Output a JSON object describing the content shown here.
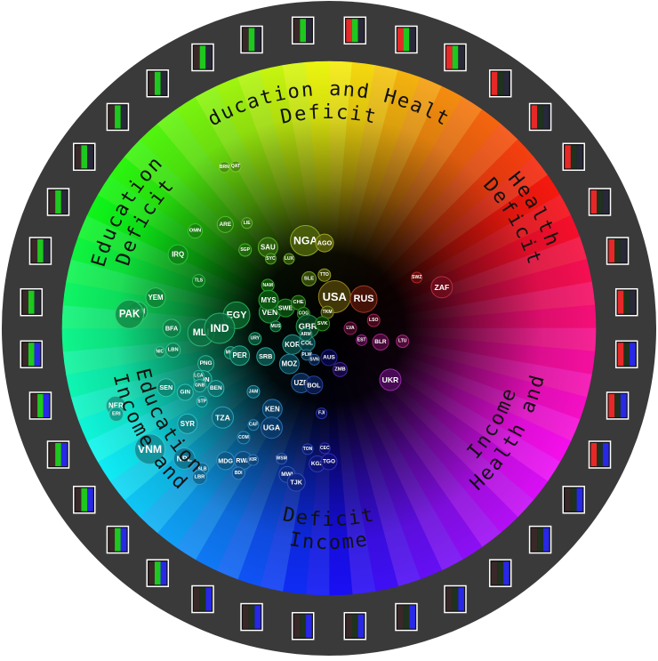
{
  "chart_data": {
    "type": "scatter",
    "description_scale": "polar color wheel; angle = deficit mix, radius = deficit magnitude (0 = center)",
    "sector_labels": [
      {
        "id": "education-and-health",
        "lines": [
          "Education and Health",
          "Deficit"
        ],
        "angle": 0
      },
      {
        "id": "health",
        "lines": [
          "Health",
          "Deficit"
        ],
        "angle": 60
      },
      {
        "id": "health-and-income",
        "lines": [
          "Health and",
          "Income"
        ],
        "angle": 120
      },
      {
        "id": "income",
        "lines": [
          "Income",
          "Deficit"
        ],
        "angle": 180
      },
      {
        "id": "income-and-education",
        "lines": [
          "Income and",
          "Education"
        ],
        "angle": 240
      },
      {
        "id": "education",
        "lines": [
          "Education",
          "Deficit"
        ],
        "angle": 300
      }
    ],
    "series": [
      {
        "label": "NGA",
        "angle": 345,
        "radius": 0.34,
        "size": 17
      },
      {
        "label": "AGO",
        "angle": 357,
        "radius": 0.32,
        "size": 10
      },
      {
        "label": "SAU",
        "angle": 323,
        "radius": 0.38,
        "size": 11
      },
      {
        "label": "LIE",
        "angle": 322,
        "radius": 0.5,
        "size": 6
      },
      {
        "label": "ARE",
        "angle": 315,
        "radius": 0.55,
        "size": 9
      },
      {
        "label": "QAT",
        "angle": 330,
        "radius": 0.7,
        "size": 6
      },
      {
        "label": "BRN",
        "angle": 327,
        "radius": 0.72,
        "size": 6
      },
      {
        "label": "OMN",
        "angle": 306,
        "radius": 0.62,
        "size": 8
      },
      {
        "label": "SGP",
        "angle": 313,
        "radius": 0.43,
        "size": 7
      },
      {
        "label": "IRQ",
        "angle": 296,
        "radius": 0.63,
        "size": 11
      },
      {
        "label": "LUX",
        "angle": 330,
        "radius": 0.3,
        "size": 6
      },
      {
        "label": "SYC",
        "angle": 320,
        "radius": 0.34,
        "size": 6
      },
      {
        "label": "TTO",
        "angle": 355,
        "radius": 0.2,
        "size": 7
      },
      {
        "label": "SLE",
        "angle": 338,
        "radius": 0.2,
        "size": 8
      },
      {
        "label": "NAM",
        "angle": 305,
        "radius": 0.28,
        "size": 7
      },
      {
        "label": "TLS",
        "angle": 290,
        "radius": 0.52,
        "size": 7
      },
      {
        "label": "YEM",
        "angle": 280,
        "radius": 0.66,
        "size": 11
      },
      {
        "label": "SDN",
        "angle": 275,
        "radius": 0.72,
        "size": 11
      },
      {
        "label": "PAK",
        "angle": 274,
        "radius": 0.75,
        "size": 16
      },
      {
        "label": "BFA",
        "angle": 270,
        "radius": 0.59,
        "size": 10
      },
      {
        "label": "MLI",
        "angle": 268,
        "radius": 0.48,
        "size": 15
      },
      {
        "label": "EGY",
        "angle": 278,
        "radius": 0.35,
        "size": 15
      },
      {
        "label": "IND",
        "angle": 270,
        "radius": 0.41,
        "size": 17
      },
      {
        "label": "LBN",
        "angle": 262,
        "radius": 0.59,
        "size": 8
      },
      {
        "label": "VEN",
        "angle": 285,
        "radius": 0.23,
        "size": 12
      },
      {
        "label": "MYS",
        "angle": 295,
        "radius": 0.25,
        "size": 11
      },
      {
        "label": "SWE",
        "angle": 295,
        "radius": 0.18,
        "size": 10
      },
      {
        "label": "CHE",
        "angle": 310,
        "radius": 0.15,
        "size": 8
      },
      {
        "label": "COG",
        "angle": 300,
        "radius": 0.11,
        "size": 7
      },
      {
        "label": "MUS",
        "angle": 272,
        "radius": 0.2,
        "size": 6
      },
      {
        "label": "URY",
        "angle": 262,
        "radius": 0.28,
        "size": 7
      },
      {
        "label": "MKD",
        "angle": 256,
        "radius": 0.38,
        "size": 7
      },
      {
        "label": "PNG",
        "angle": 254,
        "radius": 0.48,
        "size": 9
      },
      {
        "label": "NIC",
        "angle": 262,
        "radius": 0.64,
        "size": 6
      },
      {
        "label": "TUN",
        "angle": 248,
        "radius": 0.51,
        "size": 10
      },
      {
        "label": "PER",
        "angle": 253,
        "radius": 0.35,
        "size": 11
      },
      {
        "label": "SEN",
        "angle": 250,
        "radius": 0.65,
        "size": 10
      },
      {
        "label": "GIN",
        "angle": 246,
        "radius": 0.59,
        "size": 9
      },
      {
        "label": "LCA",
        "angle": 250,
        "radius": 0.52,
        "size": 6
      },
      {
        "label": "GNB",
        "angle": 246,
        "radius": 0.53,
        "size": 7
      },
      {
        "label": "NER",
        "angle": 250,
        "radius": 0.85,
        "size": 11
      },
      {
        "label": "ERI",
        "angle": 248,
        "radius": 0.86,
        "size": 8
      },
      {
        "label": "SYR",
        "angle": 236,
        "radius": 0.64,
        "size": 11
      },
      {
        "label": "STP",
        "angle": 240,
        "radius": 0.55,
        "size": 6
      },
      {
        "label": "BEN",
        "angle": 242,
        "radius": 0.48,
        "size": 9
      },
      {
        "label": "SRB",
        "angle": 246,
        "radius": 0.26,
        "size": 10
      },
      {
        "label": "GBR",
        "angle": 275,
        "radius": 0.08,
        "size": 13
      },
      {
        "label": "KOR",
        "angle": 246,
        "radius": 0.15,
        "size": 11
      },
      {
        "label": "COL",
        "angle": 236,
        "radius": 0.1,
        "size": 9
      },
      {
        "label": "JAM",
        "angle": 230,
        "radius": 0.37,
        "size": 7
      },
      {
        "label": "MOZ",
        "angle": 228,
        "radius": 0.2,
        "size": 11
      },
      {
        "label": "TZA",
        "angle": 230,
        "radius": 0.52,
        "size": 12
      },
      {
        "label": "VNM",
        "angle": 236,
        "radius": 0.81,
        "size": 17
      },
      {
        "label": "NPL",
        "angle": 228,
        "radius": 0.73,
        "size": 12
      },
      {
        "label": "COM",
        "angle": 218,
        "radius": 0.52,
        "size": 7
      },
      {
        "label": "KEN",
        "angle": 215,
        "radius": 0.37,
        "size": 11
      },
      {
        "label": "UZB",
        "angle": 207,
        "radius": 0.23,
        "size": 11
      },
      {
        "label": "CAF",
        "angle": 218,
        "radius": 0.46,
        "size": 6
      },
      {
        "label": "UGA",
        "angle": 210,
        "radius": 0.43,
        "size": 12
      },
      {
        "label": "SLB",
        "angle": 222,
        "radius": 0.71,
        "size": 7
      },
      {
        "label": "MDG",
        "angle": 218,
        "radius": 0.63,
        "size": 10
      },
      {
        "label": "RWA",
        "angle": 213,
        "radius": 0.59,
        "size": 10
      },
      {
        "label": "LBR",
        "angle": 221,
        "radius": 0.74,
        "size": 8
      },
      {
        "label": "BDI",
        "angle": 212,
        "radius": 0.64,
        "size": 7
      },
      {
        "label": "KIR",
        "angle": 210,
        "radius": 0.57,
        "size": 6
      },
      {
        "label": "WSM",
        "angle": 200,
        "radius": 0.52,
        "size": 6
      },
      {
        "label": "MWI",
        "angle": 196,
        "radius": 0.57,
        "size": 9
      },
      {
        "label": "TJK",
        "angle": 192,
        "radius": 0.59,
        "size": 10
      },
      {
        "label": "KGZ",
        "angle": 185,
        "radius": 0.51,
        "size": 9
      },
      {
        "label": "TGO",
        "angle": 180,
        "radius": 0.5,
        "size": 9
      },
      {
        "label": "TON",
        "angle": 190,
        "radius": 0.46,
        "size": 6
      },
      {
        "label": "CEC",
        "angle": 182,
        "radius": 0.45,
        "size": 6
      },
      {
        "label": "BOL",
        "angle": 195,
        "radius": 0.22,
        "size": 10
      },
      {
        "label": "USA",
        "angle": 10,
        "radius": 0.12,
        "size": 18
      },
      {
        "label": "RUS",
        "angle": 50,
        "radius": 0.17,
        "size": 15
      },
      {
        "label": "TKM",
        "angle": 354,
        "radius": 0.06,
        "size": 7
      },
      {
        "label": "LSO",
        "angle": 80,
        "radius": 0.17,
        "size": 7
      },
      {
        "label": "LVA",
        "angle": 90,
        "radius": 0.08,
        "size": 7
      },
      {
        "label": "SVK",
        "angle": 305,
        "radius": 0.03,
        "size": 8
      },
      {
        "label": "EST",
        "angle": 110,
        "radius": 0.13,
        "size": 6
      },
      {
        "label": "BLR",
        "angle": 105,
        "radius": 0.2,
        "size": 9
      },
      {
        "label": "LTU",
        "angle": 100,
        "radius": 0.28,
        "size": 7
      },
      {
        "label": "SWZ",
        "angle": 60,
        "radius": 0.38,
        "size": 6
      },
      {
        "label": "ZAF",
        "angle": 70,
        "radius": 0.45,
        "size": 12
      },
      {
        "label": "AUS",
        "angle": 180,
        "radius": 0.11,
        "size": 9
      },
      {
        "label": "ZMB",
        "angle": 165,
        "radius": 0.16,
        "size": 8
      },
      {
        "label": "UKR",
        "angle": 130,
        "radius": 0.3,
        "size": 12
      },
      {
        "label": "FJI",
        "angle": 185,
        "radius": 0.32,
        "size": 6
      },
      {
        "label": "PLW",
        "angle": 220,
        "radius": 0.13,
        "size": 6
      },
      {
        "label": "SVN",
        "angle": 205,
        "radius": 0.13,
        "size": 6
      },
      {
        "label": "ARM",
        "angle": 255,
        "radius": 0.09,
        "size": 7
      }
    ]
  },
  "ring_swatches": [
    [
      "#cc2222",
      "#22aa22",
      "#3333aa"
    ],
    [
      "#ee2222",
      "#118811",
      "#222244"
    ]
  ]
}
